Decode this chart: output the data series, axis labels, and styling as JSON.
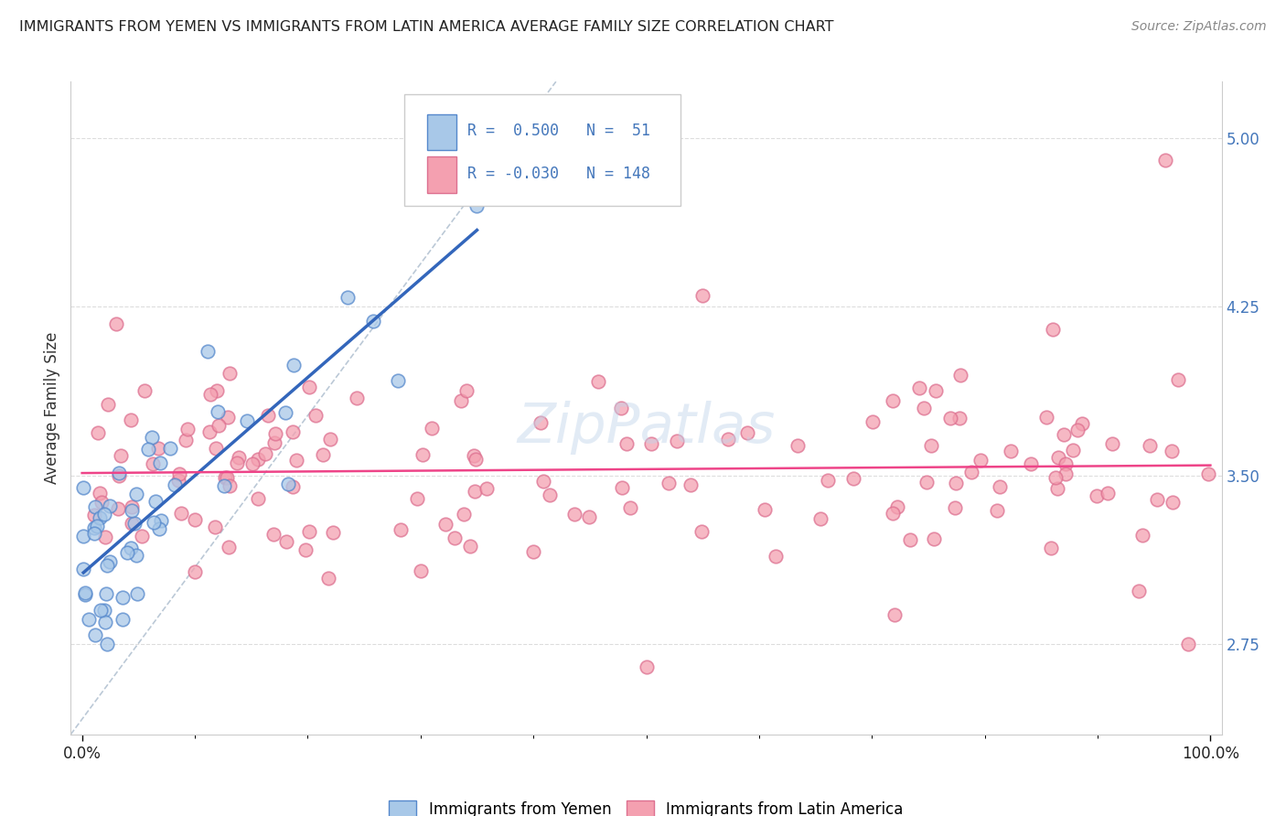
{
  "title": "IMMIGRANTS FROM YEMEN VS IMMIGRANTS FROM LATIN AMERICA AVERAGE FAMILY SIZE CORRELATION CHART",
  "source": "Source: ZipAtlas.com",
  "ylabel": "Average Family Size",
  "legend_label1": "Immigrants from Yemen",
  "legend_label2": "Immigrants from Latin America",
  "R_yemen": 0.5,
  "N_yemen": 51,
  "R_latin": -0.03,
  "N_latin": 148,
  "yticks": [
    2.75,
    3.5,
    4.25,
    5.0
  ],
  "ylim": [
    2.35,
    5.25
  ],
  "xlim": [
    -0.01,
    1.01
  ],
  "color_yemen_fill": "#a8c8e8",
  "color_yemen_edge": "#5588cc",
  "color_latin_fill": "#f4a0b0",
  "color_latin_edge": "#dd7090",
  "color_yemen_line": "#3366bb",
  "color_latin_line": "#ee4488",
  "color_diag": "#aabbcc",
  "background_color": "#ffffff",
  "grid_color": "#dddddd",
  "ytick_color": "#4477bb",
  "title_color": "#222222",
  "source_color": "#888888",
  "watermark": "ZipPatlas",
  "watermark_color": "#c8d8ec"
}
